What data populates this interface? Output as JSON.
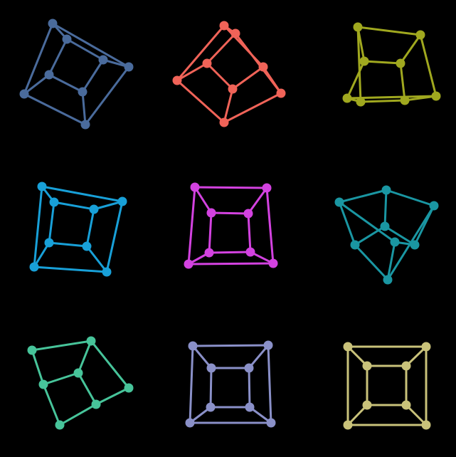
{
  "background": "#000000",
  "graphs": [
    {
      "id": "graph-1",
      "color": "#4a6b9c"
    },
    {
      "id": "graph-2",
      "color": "#f06358"
    },
    {
      "id": "graph-3",
      "color": "#a0a81f"
    },
    {
      "id": "graph-4",
      "color": "#18a0d8"
    },
    {
      "id": "graph-5",
      "color": "#d342e0"
    },
    {
      "id": "graph-6",
      "color": "#1a96a2"
    },
    {
      "id": "graph-7",
      "color": "#47c49a"
    },
    {
      "id": "graph-8",
      "color": "#8a90c8"
    },
    {
      "id": "graph-9",
      "color": "#c9c27a"
    }
  ]
}
